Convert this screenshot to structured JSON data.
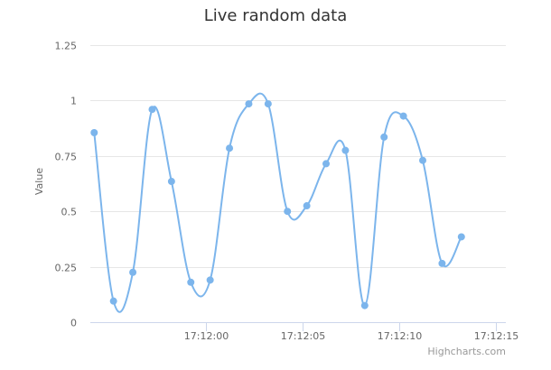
{
  "chart_data": {
    "type": "line",
    "title": "Live random data",
    "ylabel": "Value",
    "xlabel": "",
    "ylim": [
      0,
      1.25
    ],
    "y_ticks": [
      0,
      0.25,
      0.5,
      0.75,
      1,
      1.25
    ],
    "y_tick_labels": [
      "0",
      "0.25",
      "0.5",
      "0.75",
      "1",
      "1.25"
    ],
    "x_range": [
      -6.0,
      15.5
    ],
    "x_ticks": [
      0,
      5,
      10,
      15
    ],
    "x_tick_labels": [
      "17:12:00",
      "17:12:05",
      "17:12:10",
      "17:12:15"
    ],
    "grid": true,
    "legend": "none",
    "series": [
      {
        "color": "#7cb5ec",
        "smooth": true,
        "points": [
          {
            "x": -5.8,
            "y": 0.855
          },
          {
            "x": -4.8,
            "y": 0.095
          },
          {
            "x": -3.8,
            "y": 0.225
          },
          {
            "x": -2.8,
            "y": 0.96
          },
          {
            "x": -1.8,
            "y": 0.635
          },
          {
            "x": -0.8,
            "y": 0.18
          },
          {
            "x": 0.2,
            "y": 0.19
          },
          {
            "x": 1.2,
            "y": 0.785
          },
          {
            "x": 2.2,
            "y": 0.985
          },
          {
            "x": 3.2,
            "y": 0.985
          },
          {
            "x": 4.2,
            "y": 0.5
          },
          {
            "x": 5.2,
            "y": 0.525
          },
          {
            "x": 6.2,
            "y": 0.715
          },
          {
            "x": 7.2,
            "y": 0.775
          },
          {
            "x": 8.2,
            "y": 0.075
          },
          {
            "x": 9.2,
            "y": 0.835
          },
          {
            "x": 10.2,
            "y": 0.93
          },
          {
            "x": 11.2,
            "y": 0.73
          },
          {
            "x": 12.2,
            "y": 0.265
          },
          {
            "x": 13.2,
            "y": 0.385
          }
        ]
      }
    ]
  },
  "credits": "Highcharts.com"
}
